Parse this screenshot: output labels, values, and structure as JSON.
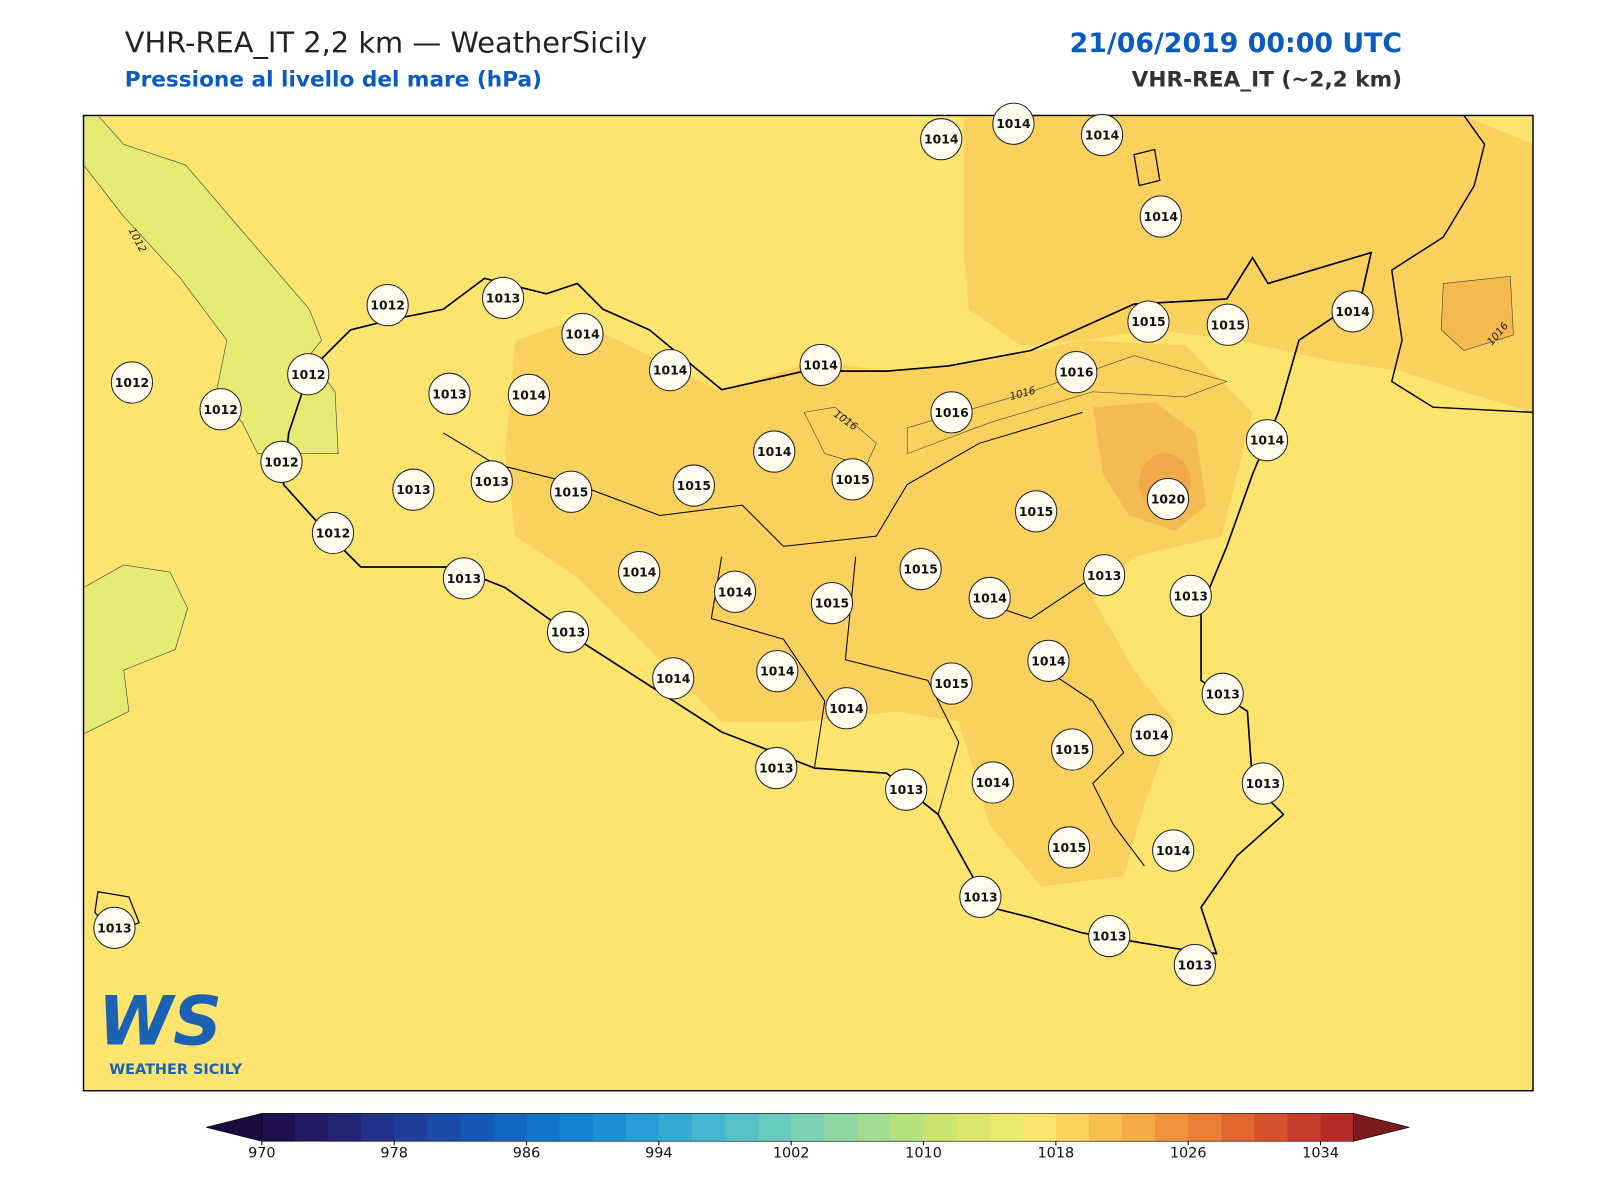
{
  "header": {
    "title": "VHR-REA_IT 2,2 km — WeatherSicily",
    "subtitle": "Pressione al livello del mare (hPa)",
    "date": "21/06/2019 00:00 UTC",
    "model": "VHR-REA_IT (~2,2 km)"
  },
  "stations": [
    1014,
    1014,
    1014,
    1014,
    1012,
    1013,
    1014,
    1014,
    1014,
    1015,
    1015,
    1014,
    1012,
    1012,
    1012,
    1013,
    1014,
    1016,
    1016,
    1014,
    1014,
    1012,
    1013,
    1013,
    1015,
    1015,
    1015,
    1020,
    1015,
    1012,
    1015,
    1013,
    1013,
    1014,
    1014,
    1015,
    1014,
    1013,
    1013,
    1014,
    1014,
    1014,
    1015,
    1013,
    1014,
    1014,
    1015,
    1013,
    1013,
    1014,
    1013,
    1015,
    1014,
    1013,
    1013,
    1013,
    1013
  ],
  "contour_labels": [
    1012,
    1016,
    1016,
    1016
  ],
  "colorbar": {
    "range": [
      970,
      1036
    ],
    "ticks": [
      970,
      978,
      986,
      994,
      1002,
      1010,
      1018,
      1026,
      1034
    ],
    "colors": [
      "#1e0f4e",
      "#221a63",
      "#232577",
      "#22318a",
      "#1f3e99",
      "#1a4ba8",
      "#1558b5",
      "#1366c1",
      "#1274c9",
      "#1582cf",
      "#1c90d3",
      "#279ed5",
      "#35abd4",
      "#45b6d0",
      "#56c0c9",
      "#68c9bf",
      "#7bd1b2",
      "#8ed7a2",
      "#a2dc90",
      "#b5e07e",
      "#c8e46f",
      "#dae76b",
      "#ebe86f",
      "#fde46f",
      "#fcd25f",
      "#f8bf50",
      "#f4aa45",
      "#ef943d",
      "#e97e36",
      "#e16731",
      "#d6522d",
      "#c83d2b",
      "#b72a28"
    ]
  },
  "logo": {
    "mark": "WS",
    "name": "WEATHER SICILY"
  }
}
